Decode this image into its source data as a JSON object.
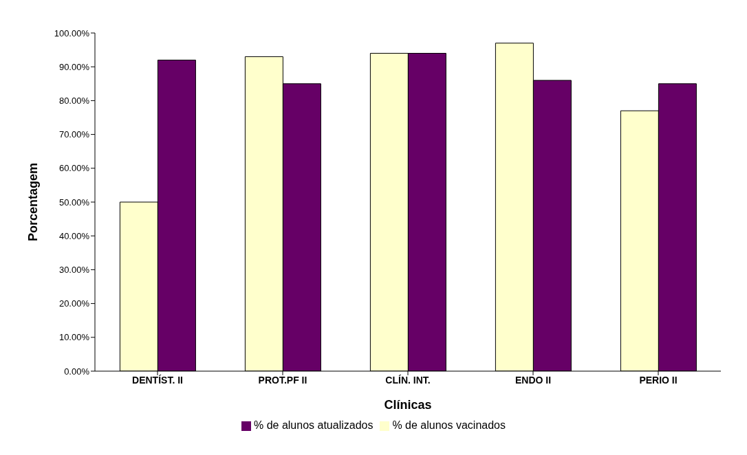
{
  "chart_data": {
    "type": "bar",
    "xlabel": "Clínicas",
    "ylabel": "Porcentagem",
    "categories": [
      "DENTÍST. II",
      "PROT.PF II",
      "CLÍN. INT.",
      "ENDO II",
      "PERIO II"
    ],
    "series": [
      {
        "name": "% de alunos vacinados",
        "color": "#ffffcc",
        "values": [
          50,
          93,
          94,
          97,
          77
        ]
      },
      {
        "name": "% de alunos atualizados",
        "color": "#660066",
        "values": [
          92,
          85,
          94,
          86,
          85
        ]
      }
    ],
    "ylim": [
      0,
      100
    ],
    "yticks": [
      {
        "value": 0,
        "label": "0.00%"
      },
      {
        "value": 10,
        "label": "10.00%"
      },
      {
        "value": 20,
        "label": "20.00%"
      },
      {
        "value": 30,
        "label": "30.00%"
      },
      {
        "value": 40,
        "label": "40.00%"
      },
      {
        "value": 50,
        "label": "50.00%"
      },
      {
        "value": 60,
        "label": "60.00%"
      },
      {
        "value": 70,
        "label": "70.00%"
      },
      {
        "value": 80,
        "label": "80.00%"
      },
      {
        "value": 90,
        "label": "90.00%"
      },
      {
        "value": 100,
        "label": "100.00%"
      }
    ],
    "grid": false,
    "legend": "bottom"
  }
}
